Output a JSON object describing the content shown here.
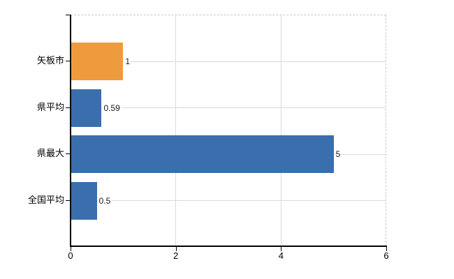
{
  "chart_data": {
    "type": "bar",
    "orientation": "horizontal",
    "title": "",
    "xlabel": "",
    "ylabel": "",
    "categories": [
      "矢板市",
      "県平均",
      "県最大",
      "全国平均"
    ],
    "values": [
      1,
      0.59,
      5,
      0.5
    ],
    "value_labels": [
      "1",
      "0.59",
      "5",
      "0.5"
    ],
    "bar_colors": [
      "#ee9b3e",
      "#3a6ead",
      "#3a6ead",
      "#3a6ead"
    ],
    "x_ticks": [
      0,
      2,
      4,
      6
    ],
    "x_tick_labels": [
      "0",
      "2",
      "4",
      "6"
    ],
    "xlim": [
      0,
      6
    ],
    "grid": "on",
    "legend": "none",
    "plot_border": "dashed-top-right",
    "colors": {
      "highlight_bar": "#ee9b3e",
      "default_bar": "#3a6ead",
      "axis": "#000000",
      "vertical_gridline": "#dbdbdb",
      "horizontal_gridline": "#d5dcd2",
      "dashed_border": "#c9c9c9",
      "background": "#ffffff"
    }
  }
}
